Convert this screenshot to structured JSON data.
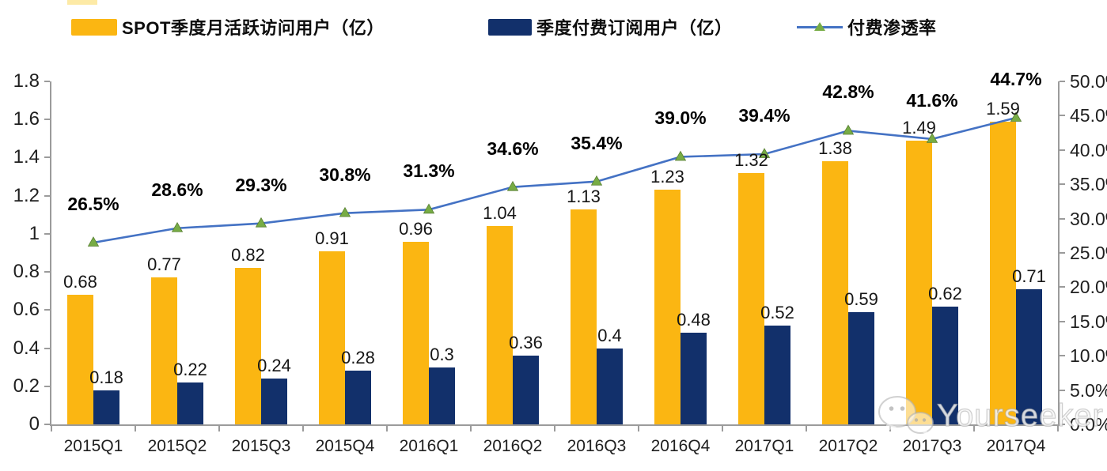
{
  "legend": [
    {
      "label": "SPOT季度月活跃访问用户（亿）",
      "swatch": "bar",
      "color": "#FBB612"
    },
    {
      "label": "季度付费订阅用户（亿）",
      "swatch": "bar",
      "color": "#12306B"
    },
    {
      "label": "付费渗透率",
      "swatch": "line",
      "color": "#4472C4",
      "marker_color": "#77AC45"
    }
  ],
  "chart_data": {
    "type": "bar+line-combo",
    "categories": [
      "2015Q1",
      "2015Q2",
      "2015Q3",
      "2015Q4",
      "2016Q1",
      "2016Q2",
      "2016Q3",
      "2016Q4",
      "2017Q1",
      "2017Q2",
      "2017Q3",
      "2017Q4"
    ],
    "series": [
      {
        "name": "SPOT季度月活跃访问用户（亿）",
        "type": "bar",
        "axis": "left",
        "color": "#FBB612",
        "values": [
          "0.68",
          "0.77",
          "0.82",
          "0.91",
          "0.96",
          "1.04",
          "1.13",
          "1.23",
          "1.32",
          "1.38",
          "1.49",
          "1.59"
        ]
      },
      {
        "name": "季度付费订阅用户（亿）",
        "type": "bar",
        "axis": "left",
        "color": "#12306B",
        "values": [
          "0.18",
          "0.22",
          "0.24",
          "0.28",
          "0.3",
          "0.36",
          "0.4",
          "0.48",
          "0.52",
          "0.59",
          "0.62",
          "0.71"
        ]
      },
      {
        "name": "付费渗透率",
        "type": "line",
        "axis": "right",
        "color": "#4472C4",
        "marker": "triangle",
        "marker_color": "#77AC45",
        "values": [
          "26.5%",
          "28.6%",
          "29.3%",
          "30.8%",
          "31.3%",
          "34.6%",
          "35.4%",
          "39.0%",
          "39.4%",
          "42.8%",
          "41.6%",
          "44.7%"
        ]
      }
    ],
    "left_axis": {
      "max": 1.8,
      "ticks": [
        "1.8",
        "1.6",
        "1.4",
        "1.2",
        "1",
        "0.8",
        "0.6",
        "0.4",
        "0.2",
        "0"
      ]
    },
    "right_axis": {
      "max": 50,
      "ticks": [
        "50.0%",
        "45.0%",
        "40.0%",
        "35.0%",
        "30.0%",
        "25.0%",
        "20.0%",
        "15.0%",
        "10.0%",
        "5.0%",
        "0.0%"
      ]
    },
    "grid": "off",
    "legend_position": "top"
  },
  "watermark": {
    "text": "Yourseeker",
    "icon": "wechat-icon"
  }
}
